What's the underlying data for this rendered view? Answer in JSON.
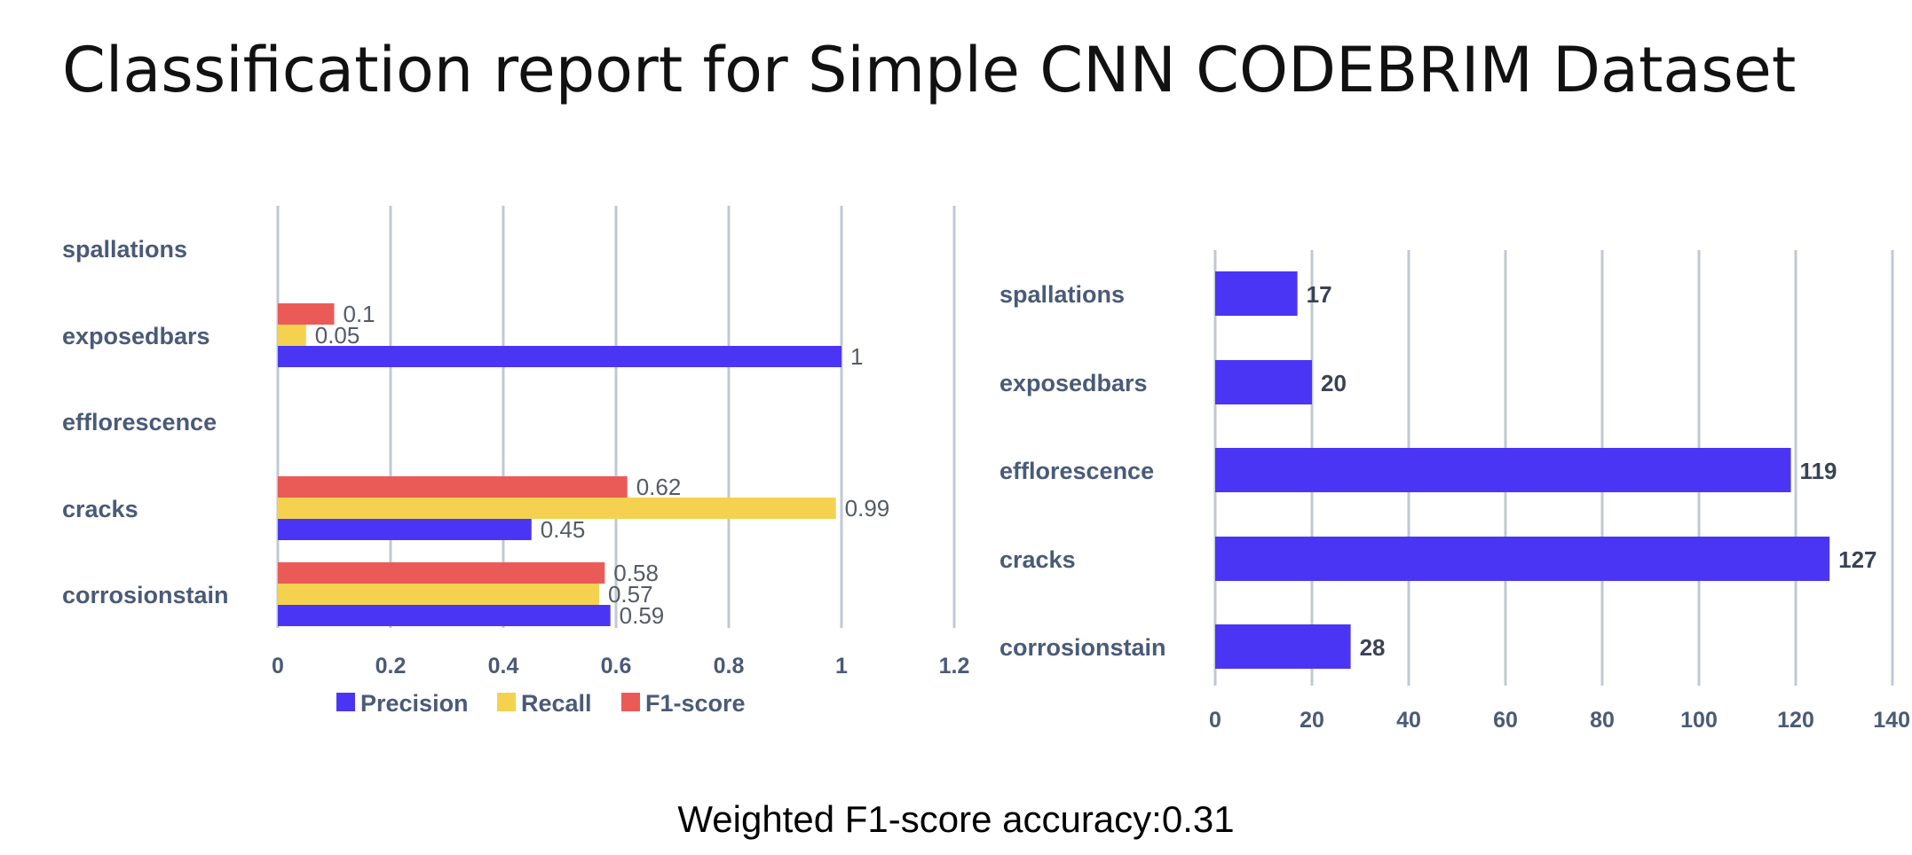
{
  "title": "Classification report for Simple CNN CODEBRIM Dataset",
  "footer": "Weighted F1-score accuracy:0.31",
  "chart_data": [
    {
      "type": "bar",
      "orientation": "horizontal",
      "categories": [
        "spallations",
        "exposedbars",
        "efflorescence",
        "cracks",
        "corrosionstain"
      ],
      "series": [
        {
          "name": "Precision",
          "color": "#4b35f5",
          "values": [
            null,
            1,
            null,
            0.45,
            0.59
          ],
          "labels": [
            "",
            "1",
            "",
            "0.45",
            "0.59"
          ]
        },
        {
          "name": "Recall",
          "color": "#f4d24f",
          "values": [
            null,
            0.05,
            null,
            0.99,
            0.57
          ],
          "labels": [
            "",
            "0.05",
            "",
            "0.99",
            "0.57"
          ]
        },
        {
          "name": "F1-score",
          "color": "#ea5b58",
          "values": [
            null,
            0.1,
            null,
            0.62,
            0.58
          ],
          "labels": [
            "",
            "0.1",
            "",
            "0.62",
            "0.58"
          ]
        }
      ],
      "xlim": [
        0,
        1.2
      ],
      "xticks": [
        "0",
        "0.2",
        "0.4",
        "0.6",
        "0.8",
        "1",
        "1.2"
      ],
      "grid": true,
      "legend": "bottom"
    },
    {
      "type": "bar",
      "orientation": "horizontal",
      "categories": [
        "spallations",
        "exposedbars",
        "efflorescence",
        "cracks",
        "corrosionstain"
      ],
      "series": [
        {
          "color": "#4b35f5",
          "values": [
            17,
            20,
            119,
            127,
            28
          ],
          "labels": [
            "17",
            "20",
            "119",
            "127",
            "28"
          ]
        }
      ],
      "xlim": [
        0,
        140
      ],
      "xticks": [
        "0",
        "20",
        "40",
        "60",
        "80",
        "100",
        "120",
        "140"
      ],
      "grid": true,
      "legend": "none"
    }
  ]
}
